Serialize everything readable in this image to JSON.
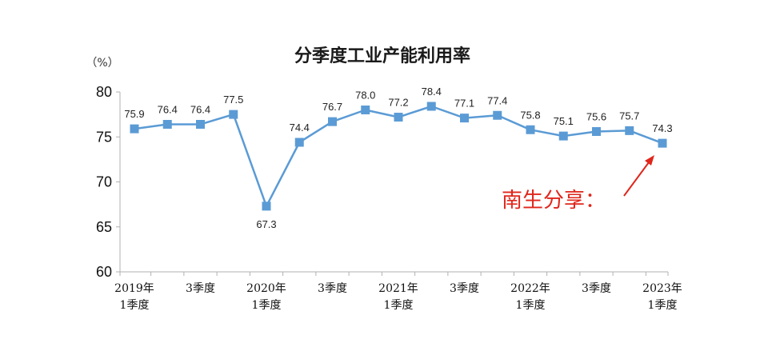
{
  "chart_data": {
    "type": "line",
    "title": "分季度工业产能利用率",
    "unit_label": "（%）",
    "ylim": [
      60,
      80
    ],
    "yticks": [
      80,
      75,
      70,
      65,
      60
    ],
    "grid": false,
    "x": [
      "2019Q1",
      "2019Q2",
      "2019Q3",
      "2019Q4",
      "2020Q1",
      "2020Q2",
      "2020Q3",
      "2020Q4",
      "2021Q1",
      "2021Q2",
      "2021Q3",
      "2021Q4",
      "2022Q1",
      "2022Q2",
      "2022Q3",
      "2022Q4",
      "2023Q1"
    ],
    "xtick_labels": [
      {
        "index": 0,
        "lines": [
          "2019年",
          "1季度"
        ]
      },
      {
        "index": 2,
        "lines": [
          "3季度"
        ]
      },
      {
        "index": 4,
        "lines": [
          "2020年",
          "1季度"
        ]
      },
      {
        "index": 6,
        "lines": [
          "3季度"
        ]
      },
      {
        "index": 8,
        "lines": [
          "2021年",
          "1季度"
        ]
      },
      {
        "index": 10,
        "lines": [
          "3季度"
        ]
      },
      {
        "index": 12,
        "lines": [
          "2022年",
          "1季度"
        ]
      },
      {
        "index": 14,
        "lines": [
          "3季度"
        ]
      },
      {
        "index": 16,
        "lines": [
          "2023年",
          "1季度"
        ]
      }
    ],
    "series": [
      {
        "color": "#5b9bd5",
        "values": [
          75.9,
          76.4,
          76.4,
          77.5,
          67.3,
          74.4,
          76.7,
          78.0,
          77.2,
          78.4,
          77.1,
          77.4,
          75.8,
          75.1,
          75.6,
          75.7,
          74.3
        ],
        "labels": [
          "75.9",
          "76.4",
          "76.4",
          "77.5",
          "67.3",
          "74.4",
          "76.7",
          "78.0",
          "77.2",
          "78.4",
          "77.1",
          "77.4",
          "75.8",
          "75.1",
          "75.6",
          "75.7",
          "74.3"
        ]
      }
    ],
    "annotation": {
      "text": "南生分享：",
      "color": "#e0261b"
    }
  }
}
